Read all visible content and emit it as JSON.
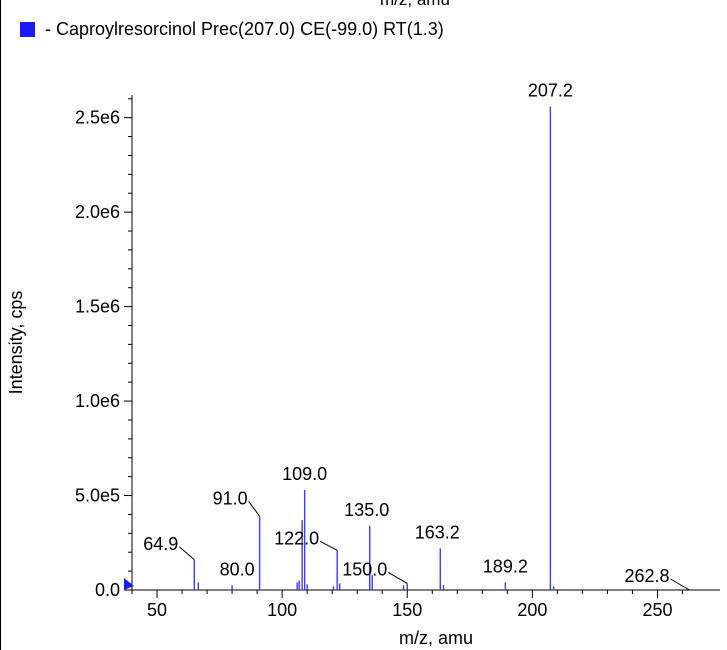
{
  "top_cut_label": "m/z, amu",
  "legend": {
    "swatch_color": "#1a1aff",
    "text": "- Caproylresorcinol Prec(207.0) CE(-99.0) RT(1.3)"
  },
  "chart_data": {
    "type": "bar",
    "title": "",
    "xlabel": "m/z, amu",
    "ylabel": "Intensity, cps",
    "xlim": [
      40,
      267
    ],
    "ylim": [
      0,
      2620000
    ],
    "x_ticks": [
      50,
      100,
      150,
      200,
      250
    ],
    "y_ticks": [
      {
        "value": 0,
        "label": "0.0"
      },
      {
        "value": 500000,
        "label": "5.0e5"
      },
      {
        "value": 1000000,
        "label": "1.0e6"
      },
      {
        "value": 1500000,
        "label": "1.5e6"
      },
      {
        "value": 2000000,
        "label": "2.0e6"
      },
      {
        "value": 2500000,
        "label": "2.5e6"
      }
    ],
    "bar_color": "#3c3cff",
    "grid": false,
    "peaks": [
      {
        "mz": 64.9,
        "intensity": 160000
      },
      {
        "mz": 66.5,
        "intensity": 40000
      },
      {
        "mz": 80.0,
        "intensity": 25000
      },
      {
        "mz": 91.0,
        "intensity": 390000
      },
      {
        "mz": 106.0,
        "intensity": 40000
      },
      {
        "mz": 106.8,
        "intensity": 50000
      },
      {
        "mz": 108.0,
        "intensity": 370000
      },
      {
        "mz": 109.0,
        "intensity": 530000
      },
      {
        "mz": 110.0,
        "intensity": 30000
      },
      {
        "mz": 120.5,
        "intensity": 20000
      },
      {
        "mz": 122.0,
        "intensity": 210000
      },
      {
        "mz": 123.0,
        "intensity": 35000
      },
      {
        "mz": 135.0,
        "intensity": 340000
      },
      {
        "mz": 136.0,
        "intensity": 80000
      },
      {
        "mz": 148.5,
        "intensity": 25000
      },
      {
        "mz": 150.0,
        "intensity": 35000
      },
      {
        "mz": 163.2,
        "intensity": 220000
      },
      {
        "mz": 164.5,
        "intensity": 25000
      },
      {
        "mz": 189.2,
        "intensity": 40000
      },
      {
        "mz": 207.2,
        "intensity": 2560000
      },
      {
        "mz": 208.5,
        "intensity": 20000
      }
    ],
    "annotations": [
      {
        "text": "207.2",
        "mz": 207.2,
        "intensity": 2560000,
        "dx": 0,
        "dy": -10,
        "leader": false
      },
      {
        "text": "109.0",
        "mz": 109.0,
        "intensity": 530000,
        "dx": 0,
        "dy": -10,
        "leader": false
      },
      {
        "text": "91.0",
        "mz": 91.0,
        "intensity": 390000,
        "dx": -12,
        "dy": -12,
        "leader": true
      },
      {
        "text": "135.0",
        "mz": 135.0,
        "intensity": 340000,
        "dx": -3,
        "dy": -10,
        "leader": false
      },
      {
        "text": "122.0",
        "mz": 122.0,
        "intensity": 210000,
        "dx": -18,
        "dy": -6,
        "leader": true
      },
      {
        "text": "163.2",
        "mz": 163.2,
        "intensity": 220000,
        "dx": -3,
        "dy": -10,
        "leader": false
      },
      {
        "text": "64.9",
        "mz": 64.9,
        "intensity": 160000,
        "dx": -16,
        "dy": -10,
        "leader": true
      },
      {
        "text": "80.0",
        "mz": 80.0,
        "intensity": 25000,
        "dx": 5,
        "dy": -10,
        "leader": false
      },
      {
        "text": "150.0",
        "mz": 150.0,
        "intensity": 35000,
        "dx": -20,
        "dy": -8,
        "leader": true
      },
      {
        "text": "189.2",
        "mz": 189.2,
        "intensity": 40000,
        "dx": 0,
        "dy": -10,
        "leader": false
      },
      {
        "text": "262.8",
        "mz": 262.8,
        "intensity": 0,
        "dx": -20,
        "dy": -8,
        "leader": true
      }
    ]
  }
}
